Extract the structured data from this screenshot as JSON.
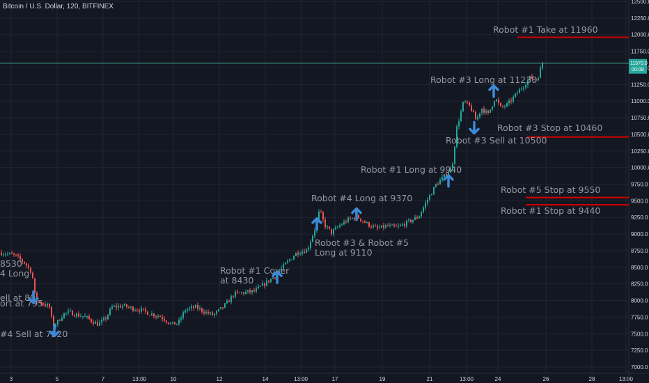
{
  "header": {
    "symbol_title": "Bitcoin / U.S. Dollar, 120, BITFINEX"
  },
  "colors": {
    "background": "#131722",
    "grid": "#1f2433",
    "up": "#26a69a",
    "down": "#ef5350",
    "arrow": "#3d8bd8",
    "level_line": "#d50000",
    "price_line": "#4caf8f"
  },
  "chart_data": {
    "type": "candlestick",
    "title": "",
    "ylim": [
      7000,
      12500
    ],
    "y_ticks": [
      "12500.0",
      "12250.0",
      "12000.0",
      "11750.0",
      "11500.0",
      "11250.0",
      "11000.0",
      "10750.0",
      "10500.0",
      "10250.0",
      "10000.0",
      "9750.0",
      "9500.0",
      "9250.0",
      "9000.0",
      "8750.0",
      "8500.0",
      "8250.0",
      "8000.0",
      "7750.0",
      "7500.0",
      "7250.0",
      "7000.0"
    ],
    "x_ticks": [
      "3",
      "5",
      "7",
      "13:00",
      "10",
      "12",
      "14",
      "13:00",
      "17",
      "19",
      "21",
      "13:00",
      "24",
      "26",
      "28",
      "13:00"
    ],
    "current_price": {
      "value": 11570,
      "label": "11570.0",
      "countdown": "00:09"
    },
    "close_path": [
      [
        0,
        8720
      ],
      [
        20,
        8680
      ],
      [
        35,
        8560
      ],
      [
        45,
        8420
      ],
      [
        50,
        8000
      ],
      [
        60,
        7960
      ],
      [
        70,
        7900
      ],
      [
        75,
        7620
      ],
      [
        82,
        7680
      ],
      [
        90,
        7800
      ],
      [
        100,
        7820
      ],
      [
        110,
        7780
      ],
      [
        120,
        7760
      ],
      [
        130,
        7700
      ],
      [
        140,
        7640
      ],
      [
        150,
        7720
      ],
      [
        160,
        7900
      ],
      [
        175,
        7920
      ],
      [
        190,
        7880
      ],
      [
        200,
        7860
      ],
      [
        215,
        7800
      ],
      [
        230,
        7760
      ],
      [
        245,
        7640
      ],
      [
        255,
        7660
      ],
      [
        265,
        7860
      ],
      [
        280,
        7900
      ],
      [
        295,
        7820
      ],
      [
        305,
        7780
      ],
      [
        315,
        7860
      ],
      [
        325,
        7960
      ],
      [
        335,
        8100
      ],
      [
        350,
        8120
      ],
      [
        365,
        8140
      ],
      [
        380,
        8260
      ],
      [
        395,
        8380
      ],
      [
        410,
        8560
      ],
      [
        425,
        8720
      ],
      [
        440,
        8760
      ],
      [
        452,
        9100
      ],
      [
        458,
        9360
      ],
      [
        465,
        9140
      ],
      [
        475,
        9020
      ],
      [
        488,
        9140
      ],
      [
        500,
        9220
      ],
      [
        512,
        9260
      ],
      [
        525,
        9160
      ],
      [
        540,
        9080
      ],
      [
        555,
        9120
      ],
      [
        570,
        9100
      ],
      [
        585,
        9180
      ],
      [
        600,
        9260
      ],
      [
        612,
        9500
      ],
      [
        625,
        9740
      ],
      [
        640,
        9900
      ],
      [
        648,
        10000
      ],
      [
        655,
        10600
      ],
      [
        665,
        11000
      ],
      [
        675,
        10900
      ],
      [
        683,
        10700
      ],
      [
        690,
        10900
      ],
      [
        700,
        10800
      ],
      [
        710,
        11050
      ],
      [
        718,
        10900
      ],
      [
        728,
        10950
      ],
      [
        740,
        11100
      ],
      [
        752,
        11250
      ],
      [
        760,
        11350
      ],
      [
        770,
        11320
      ],
      [
        778,
        11570
      ]
    ],
    "levels": [
      {
        "label": "Robot #1 Take at 11960",
        "value": 11960
      },
      {
        "label": "Robot #3 Stop at 10460",
        "value": 10460
      },
      {
        "label": "Robot #5 Stop at 9550",
        "value": 9550
      },
      {
        "label": "Robot #1 Stop at 9440",
        "value": 9440
      }
    ],
    "annotations": [
      {
        "text": "8530"
      },
      {
        "text": "4 Long"
      },
      {
        "text": "ell at 80"
      },
      {
        "text": "ort at 795"
      },
      {
        "text": "#4 Sell at 7520"
      },
      {
        "text": "Robot #1 Cover"
      },
      {
        "text": "at 8430"
      },
      {
        "text": "Robot #4 Long at 9370"
      },
      {
        "text": "Robot #3 & Robot #5"
      },
      {
        "text": "Long at 9110"
      },
      {
        "text": "Robot #1 Long at 9940"
      },
      {
        "text": "Robot #3 Long at 11230"
      },
      {
        "text": "Robot #3 Sell at 10500"
      }
    ],
    "arrows": [
      {
        "dir": "down",
        "price": 8050
      },
      {
        "dir": "down",
        "price": 7550
      },
      {
        "dir": "up",
        "price": 8350
      },
      {
        "dir": "up",
        "price": 9150
      },
      {
        "dir": "up",
        "price": 9300
      },
      {
        "dir": "up",
        "price": 9800
      },
      {
        "dir": "down",
        "price": 10600
      },
      {
        "dir": "up",
        "price": 11150
      }
    ]
  }
}
